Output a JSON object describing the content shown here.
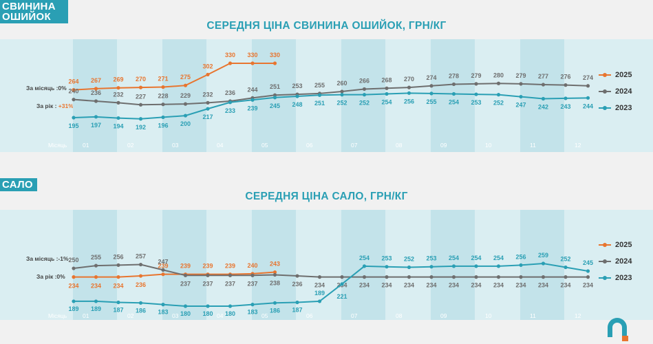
{
  "colors": {
    "y2025": "#e8752f",
    "y2024": "#6e6e6e",
    "y2023": "#2a9fb4",
    "band": "#daeef2",
    "stripe": "#c3e3ea"
  },
  "chart_data": [
    {
      "type": "line",
      "tag": "СВИНИНА ОШИЙОК",
      "title": "СЕРЕДНЯ ЦІНА СВИНИНА ОШИЙОК, ГРН/КГ",
      "x_label": "Місяць",
      "months": [
        "01",
        "02",
        "03",
        "04",
        "05",
        "06",
        "07",
        "08",
        "09",
        "10",
        "11",
        "12"
      ],
      "monthly_change_label": "За місяць :0%",
      "yearly_change_label_prefix": "За рік : ",
      "yearly_change_value": "+31%",
      "series": [
        {
          "name": "2025",
          "color": "#e8752f",
          "values": [
            264,
            267,
            269,
            270,
            271,
            275,
            302,
            330,
            330,
            330
          ]
        },
        {
          "name": "2024",
          "color": "#6e6e6e",
          "values": [
            240,
            236,
            232,
            227,
            228,
            229,
            232,
            236,
            244,
            251,
            253,
            255,
            260,
            266,
            268,
            270,
            274,
            278,
            279,
            280,
            279,
            277,
            276,
            274
          ]
        },
        {
          "name": "2023",
          "color": "#2a9fb4",
          "values": [
            195,
            197,
            194,
            192,
            196,
            200,
            217,
            233,
            239,
            245,
            248,
            251,
            252,
            252,
            254,
            256,
            255,
            254,
            253,
            252,
            247,
            242,
            243,
            244
          ]
        }
      ]
    },
    {
      "type": "line",
      "tag": "САЛО",
      "title": "СЕРЕДНЯ ЦІНА САЛО, ГРН/КГ",
      "x_label": "Місяць",
      "months": [
        "01",
        "02",
        "03",
        "04",
        "05",
        "06",
        "07",
        "08",
        "09",
        "10",
        "11",
        "12"
      ],
      "monthly_change_label": "За місяць :-1%",
      "yearly_change_label": "За рік :0%",
      "series": [
        {
          "name": "2025",
          "color": "#e8752f",
          "values": [
            234,
            234,
            234,
            236,
            239,
            239,
            239,
            239,
            240,
            243
          ]
        },
        {
          "name": "2024",
          "color": "#6e6e6e",
          "values": [
            250,
            255,
            256,
            257,
            247,
            237,
            237,
            237,
            237,
            238,
            236,
            234,
            234,
            234,
            234,
            234,
            234,
            234,
            234,
            234,
            234,
            234,
            234,
            234
          ]
        },
        {
          "name": "2023",
          "color": "#2a9fb4",
          "values": [
            189,
            189,
            187,
            186,
            183,
            180,
            180,
            180,
            183,
            186,
            187,
            189,
            221,
            254,
            253,
            252,
            253,
            254,
            254,
            254,
            256,
            259,
            252,
            245
          ]
        }
      ]
    }
  ]
}
